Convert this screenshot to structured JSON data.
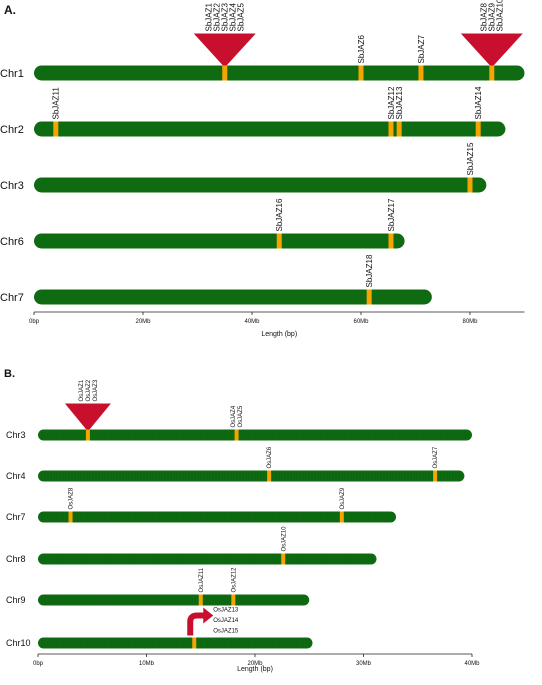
{
  "colors": {
    "chromosome": "#0e6b12",
    "gene": "#f5a400",
    "cluster": "#c8102e",
    "axis": "#222222",
    "segment_line": "#0a5a0e"
  },
  "panels": [
    {
      "label": "A.",
      "axis_title": "Length (bp)",
      "ticks": [
        {
          "value": 0,
          "label": "0bp"
        },
        {
          "value": 20,
          "label": "20Mb"
        },
        {
          "value": 40,
          "label": "40Mb"
        },
        {
          "value": 60,
          "label": "60Mb"
        },
        {
          "value": 80,
          "label": "80Mb"
        }
      ],
      "chromosomes": [
        {
          "name": "Chr1",
          "length": 90,
          "genes": [
            {
              "pos": 35,
              "labels": [
                "SbJAZ1",
                "SbJAZ2",
                "SbJAZ3",
                "SbJAZ4",
                "SbJAZ5"
              ],
              "cluster": true
            },
            {
              "pos": 60,
              "labels": [
                "SbJAZ6"
              ]
            },
            {
              "pos": 71,
              "labels": [
                "SbJAZ7"
              ]
            },
            {
              "pos": 84,
              "labels": [
                "SbJAZ8",
                "SbJAZ9",
                "SbJAZ10"
              ],
              "cluster": true
            }
          ]
        },
        {
          "name": "Chr2",
          "length": 86.5,
          "genes": [
            {
              "pos": 4,
              "labels": [
                "SbJAZ11"
              ]
            },
            {
              "pos": 65.5,
              "labels": [
                "SbJAZ12"
              ]
            },
            {
              "pos": 67,
              "labels": [
                "SbJAZ13"
              ]
            },
            {
              "pos": 81.5,
              "labels": [
                "SbJAZ14"
              ]
            }
          ]
        },
        {
          "name": "Chr3",
          "length": 83,
          "genes": [
            {
              "pos": 80,
              "labels": [
                "SbJAZ15"
              ]
            }
          ]
        },
        {
          "name": "Chr6",
          "length": 68,
          "genes": [
            {
              "pos": 45,
              "labels": [
                "SbJAZ16"
              ]
            },
            {
              "pos": 65.5,
              "labels": [
                "SbJAZ17"
              ]
            }
          ]
        },
        {
          "name": "Chr7",
          "length": 73,
          "genes": [
            {
              "pos": 61.5,
              "labels": [
                "SbJAZ18"
              ]
            }
          ]
        }
      ]
    },
    {
      "label": "B.",
      "axis_title": "Length (bp)",
      "ticks": [
        {
          "value": 0,
          "label": "0bp"
        },
        {
          "value": 10,
          "label": "10Mb"
        },
        {
          "value": 20,
          "label": "20Mb"
        },
        {
          "value": 30,
          "label": "30Mb"
        },
        {
          "value": 40,
          "label": "40Mb"
        }
      ],
      "chromosomes": [
        {
          "name": "Chr3",
          "length": 40,
          "genes": [
            {
              "pos": 4.6,
              "labels": [
                "OsJAZ1",
                "OsJAZ2",
                "OsJAZ3"
              ],
              "cluster": true
            },
            {
              "pos": 18.3,
              "labels": [
                "OsJAZ4",
                "OsJAZ5"
              ]
            }
          ]
        },
        {
          "name": "Chr4",
          "length": 39.3,
          "genes": [
            {
              "pos": 21.3,
              "labels": [
                "OsJAZ6"
              ]
            },
            {
              "pos": 36.6,
              "labels": [
                "OsJAZ7"
              ]
            }
          ]
        },
        {
          "name": "Chr7",
          "length": 33,
          "genes": [
            {
              "pos": 3,
              "labels": [
                "OsJAZ8"
              ]
            },
            {
              "pos": 28,
              "labels": [
                "OsJAZ9"
              ]
            }
          ]
        },
        {
          "name": "Chr8",
          "length": 31.2,
          "genes": [
            {
              "pos": 22.6,
              "labels": [
                "OsJAZ10"
              ]
            }
          ]
        },
        {
          "name": "Chr9",
          "length": 25,
          "genes": [
            {
              "pos": 15,
              "labels": [
                "OsJAZ11"
              ]
            },
            {
              "pos": 18,
              "labels": [
                "OsJAZ12"
              ]
            }
          ]
        },
        {
          "name": "Chr10",
          "length": 25.3,
          "genes": [
            {
              "pos": 14.4,
              "labels": [
                "OsJAZ13",
                "OsJAZ14",
                "OsJAZ15"
              ],
              "arrow": true
            }
          ]
        }
      ]
    }
  ]
}
